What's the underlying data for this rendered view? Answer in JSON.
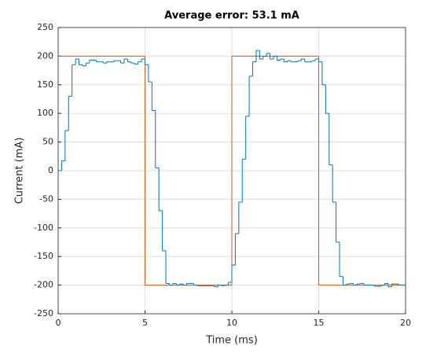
{
  "chart_data": {
    "type": "stairs",
    "title": "Average error:  53.1 mA",
    "xlabel": "Time (ms)",
    "ylabel": "Current (mA)",
    "xlim": [
      0,
      20
    ],
    "ylim": [
      -250,
      250
    ],
    "xticks": [
      0,
      5,
      10,
      15,
      20
    ],
    "yticks": [
      -250,
      -200,
      -150,
      -100,
      -50,
      0,
      50,
      100,
      150,
      200,
      250
    ],
    "grid": true,
    "series": [
      {
        "color": "#0072bd",
        "x": [
          0,
          0.2,
          0.4,
          0.6,
          0.8,
          1,
          1.2,
          1.4,
          1.6,
          1.8,
          2,
          2.2,
          2.4,
          2.6,
          2.8,
          3,
          3.2,
          3.4,
          3.6,
          3.8,
          4,
          4.2,
          4.4,
          4.6,
          4.8,
          5,
          5.2,
          5.4,
          5.6,
          5.8,
          6,
          6.2,
          6.4,
          6.6,
          6.8,
          7,
          7.2,
          7.4,
          7.6,
          7.8,
          8,
          8.2,
          8.4,
          8.6,
          8.8,
          9,
          9.2,
          9.4,
          9.6,
          9.8,
          10,
          10.2,
          10.4,
          10.6,
          10.8,
          11,
          11.2,
          11.4,
          11.6,
          11.8,
          12,
          12.2,
          12.4,
          12.6,
          12.8,
          13,
          13.2,
          13.4,
          13.6,
          13.8,
          14,
          14.2,
          14.4,
          14.6,
          14.8,
          15,
          15.2,
          15.4,
          15.6,
          15.8,
          16,
          16.2,
          16.4,
          16.6,
          16.8,
          17,
          17.2,
          17.4,
          17.6,
          17.8,
          18,
          18.2,
          18.4,
          18.6,
          18.8,
          19,
          19.2,
          19.4,
          19.6,
          19.8,
          20
        ],
        "values": [
          0,
          17,
          70,
          130,
          185,
          195,
          185,
          183,
          188,
          193,
          193,
          190,
          190,
          188,
          190,
          190,
          192,
          192,
          188,
          195,
          190,
          188,
          186,
          190,
          195,
          185,
          155,
          105,
          5,
          -70,
          -140,
          -197,
          -200,
          -197,
          -200,
          -198,
          -200,
          -197,
          -197,
          -200,
          -201,
          -201,
          -201,
          -201,
          -201,
          -203,
          -200,
          -201,
          -200,
          -195,
          -165,
          -110,
          -55,
          20,
          95,
          165,
          190,
          210,
          195,
          200,
          205,
          195,
          200,
          193,
          195,
          190,
          192,
          190,
          190,
          192,
          195,
          190,
          190,
          192,
          195,
          190,
          150,
          100,
          10,
          -55,
          -125,
          -185,
          -200,
          -198,
          -197,
          -200,
          -198,
          -197,
          -200,
          -200,
          -200,
          -202,
          -202,
          -200,
          -197,
          -203,
          -198,
          -198,
          -200,
          -200,
          -200
        ]
      },
      {
        "color": "#d95319",
        "x": [
          0,
          5,
          10,
          15,
          20
        ],
        "values": [
          200,
          -200,
          200,
          -200,
          -200
        ]
      }
    ]
  }
}
